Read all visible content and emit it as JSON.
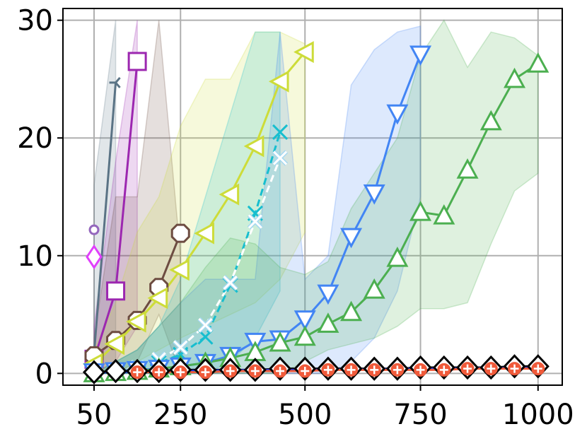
{
  "chart_data": {
    "type": "line",
    "title": "",
    "xlabel": "",
    "ylabel": "",
    "xlim": [
      5,
      1053
    ],
    "ylim": [
      -1,
      31
    ],
    "grid": true,
    "x_ticks": [
      {
        "value": 50,
        "label": "50"
      },
      {
        "value": 250,
        "label": "250"
      },
      {
        "value": 500,
        "label": "500"
      },
      {
        "value": 750,
        "label": "750"
      },
      {
        "value": 1000,
        "label": "1000"
      }
    ],
    "y_ticks": [
      {
        "value": 0,
        "label": "0"
      },
      {
        "value": 10,
        "label": "10"
      },
      {
        "value": 20,
        "label": "20"
      },
      {
        "value": 30,
        "label": "30"
      }
    ],
    "x_tick_map": {
      "data": [
        50,
        250,
        500,
        750,
        1000
      ],
      "display": [
        120,
        245,
        425,
        592,
        762
      ]
    },
    "series": [
      {
        "color": "#9467bd",
        "marker": "circle-small",
        "x": [
          50
        ],
        "y": [
          12.2
        ],
        "band": null
      },
      {
        "color": "#e040fb",
        "marker": "diamond",
        "x": [
          50
        ],
        "y": [
          9.9
        ],
        "band": null
      },
      {
        "color": "#5a7385",
        "marker": "tri-left",
        "x": [
          50,
          100
        ],
        "y": [
          1.7,
          24.7
        ],
        "band": {
          "x": [
            50,
            100
          ],
          "lower": [
            0,
            0
          ],
          "upper": [
            16,
            30
          ]
        }
      },
      {
        "color": "#9c27b0",
        "marker": "square",
        "x": [
          50,
          100,
          150
        ],
        "y": [
          1.2,
          7.0,
          26.5
        ],
        "band": {
          "x": [
            50,
            100,
            150
          ],
          "lower": [
            0,
            1,
            4
          ],
          "upper": [
            4,
            18,
            30
          ]
        }
      },
      {
        "color": "#6d4c41",
        "marker": "octagon",
        "x": [
          50,
          100,
          150,
          200,
          250
        ],
        "y": [
          1.5,
          2.8,
          4.5,
          7.3,
          11.9
        ],
        "band": {
          "x": [
            50,
            100,
            150,
            200,
            250
          ],
          "lower": [
            0,
            0,
            1,
            5,
            0
          ],
          "upper": [
            3,
            15,
            15,
            30,
            10
          ]
        }
      },
      {
        "color": "#cddc39",
        "marker": "tri-left-marker",
        "x": [
          50,
          100,
          150,
          200,
          250,
          300,
          350,
          400,
          450,
          500
        ],
        "y": [
          0.8,
          2.5,
          4.4,
          6.4,
          8.8,
          11.9,
          15.2,
          19.3,
          24.8,
          27.3
        ],
        "band": {
          "x": [
            50,
            100,
            150,
            200,
            250,
            300,
            350,
            400,
            450,
            500
          ],
          "lower": [
            0,
            0,
            1,
            2,
            3,
            4,
            5,
            6,
            8,
            12
          ],
          "upper": [
            2,
            6,
            12,
            15,
            21,
            25,
            25,
            29,
            29,
            28
          ]
        }
      },
      {
        "color": "#17becf",
        "marker": "x",
        "x": [
          50,
          100,
          150,
          200,
          250,
          300,
          350,
          400,
          450
        ],
        "y": [
          0.1,
          0.2,
          0.4,
          0.9,
          1.6,
          3.1,
          7.5,
          13.6,
          20.5
        ],
        "band": {
          "x": [
            50,
            100,
            150,
            200,
            250,
            300,
            350,
            400,
            450
          ],
          "lower": [
            0,
            0,
            0,
            0,
            0,
            0,
            1,
            3,
            7
          ],
          "upper": [
            0,
            1,
            2,
            4,
            8,
            15,
            22,
            29,
            29
          ]
        }
      },
      {
        "color": "#a5d8f0",
        "marker": "x-white",
        "x": [
          50,
          100,
          150,
          200,
          250,
          300,
          350,
          400,
          450
        ],
        "y": [
          0.1,
          0.2,
          0.5,
          1.2,
          2.2,
          4.1,
          7.7,
          12.9,
          18.3
        ],
        "band": null
      },
      {
        "color": "#4285f4",
        "marker": "tri-down",
        "x": [
          50,
          100,
          150,
          200,
          250,
          300,
          350,
          400,
          450,
          500,
          550,
          600,
          650,
          700,
          750
        ],
        "y": [
          0.1,
          0.2,
          0.3,
          0.4,
          0.6,
          0.9,
          1.5,
          2.7,
          2.9,
          4.6,
          6.8,
          11.6,
          15.3,
          22.1,
          27.1
        ],
        "band": {
          "x": [
            50,
            100,
            150,
            200,
            250,
            300,
            350,
            400,
            450,
            500,
            550,
            600,
            650,
            700,
            750
          ],
          "lower": [
            0,
            0,
            0,
            0,
            0,
            0,
            0,
            0,
            0,
            0,
            0,
            1,
            3,
            7,
            15
          ],
          "upper": [
            0,
            1,
            2,
            4,
            6,
            8,
            8,
            8,
            29,
            8,
            10,
            24.5,
            27.5,
            29,
            29.5
          ]
        }
      },
      {
        "color": "#4caf50",
        "marker": "tri-up",
        "x": [
          50,
          100,
          150,
          200,
          250,
          300,
          350,
          400,
          450,
          500,
          550,
          600,
          650,
          700,
          750,
          800,
          850,
          900,
          950,
          1000
        ],
        "y": [
          0.0,
          0.1,
          0.2,
          0.4,
          0.6,
          0.9,
          1.3,
          1.8,
          2.6,
          3.1,
          4.2,
          5.2,
          7.1,
          9.8,
          13.7,
          13.4,
          17.3,
          21.4,
          25.0,
          26.3
        ],
        "band": {
          "x": [
            50,
            100,
            150,
            200,
            250,
            300,
            350,
            400,
            450,
            500,
            550,
            600,
            650,
            700,
            750,
            800,
            850,
            900,
            950,
            1000
          ],
          "lower": [
            0,
            0,
            0,
            0,
            0,
            0,
            0,
            0,
            0,
            1,
            2,
            2.5,
            3,
            4,
            5.5,
            5.5,
            6,
            11,
            15.5,
            17
          ],
          "upper": [
            0,
            1,
            2,
            4,
            6,
            9,
            11.5,
            11,
            9,
            8.4,
            9.5,
            14,
            17,
            20,
            27,
            30,
            26,
            29,
            28.5,
            27
          ]
        }
      },
      {
        "color": "#000000",
        "marker": "diamond-black",
        "x": [
          50,
          100,
          150,
          200,
          250,
          300,
          350,
          400,
          450,
          500,
          550,
          600,
          650,
          700,
          750,
          800,
          850,
          900,
          950,
          1000
        ],
        "y": [
          0.1,
          0.2,
          0.2,
          0.2,
          0.3,
          0.3,
          0.3,
          0.3,
          0.4,
          0.4,
          0.4,
          0.4,
          0.4,
          0.4,
          0.5,
          0.5,
          0.5,
          0.5,
          0.6,
          0.6
        ],
        "band": null
      },
      {
        "color": "#1a33d6",
        "marker": "line-only",
        "x": [
          50,
          100,
          150,
          200,
          250,
          300,
          350,
          400,
          450,
          500,
          550,
          600,
          650,
          700,
          750,
          800,
          850,
          900,
          950,
          1000
        ],
        "y": [
          0.05,
          0.1,
          0.15,
          0.2,
          0.2,
          0.25,
          0.25,
          0.3,
          0.3,
          0.3,
          0.35,
          0.35,
          0.35,
          0.4,
          0.4,
          0.4,
          0.45,
          0.45,
          0.45,
          0.5
        ],
        "band": null
      },
      {
        "color": "#f05a3a",
        "marker": "plus-circle",
        "x": [
          150,
          200,
          250,
          300,
          350,
          400,
          450,
          500,
          550,
          600,
          650,
          700,
          750,
          800,
          850,
          900,
          950,
          1000
        ],
        "y": [
          0.1,
          0.1,
          0.1,
          0.1,
          0.2,
          0.2,
          0.2,
          0.2,
          0.3,
          0.3,
          0.3,
          0.3,
          0.3,
          0.3,
          0.4,
          0.4,
          0.4,
          0.4
        ],
        "band": null
      }
    ]
  }
}
